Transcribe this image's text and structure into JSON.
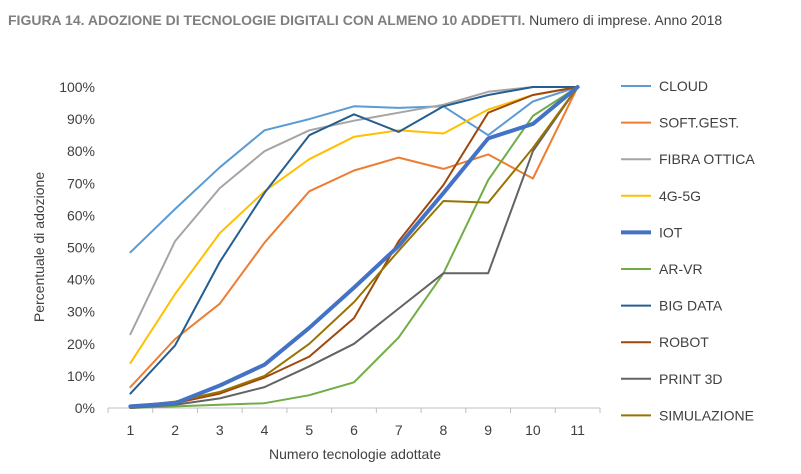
{
  "title": {
    "main": "FIGURA 14. ADOZIONE DI TECNOLOGIE DIGITALI CON ALMENO 10 ADDETTI.",
    "sub": "Numero di imprese. Anno 2018"
  },
  "chart_data": {
    "type": "line",
    "xlabel": "Numero tecnologie adottate",
    "ylabel": "Percentuale di adozione",
    "x": [
      1,
      2,
      3,
      4,
      5,
      6,
      7,
      8,
      9,
      10,
      11
    ],
    "ylim": [
      0,
      100
    ],
    "yticks": [
      "0%",
      "10%",
      "20%",
      "30%",
      "40%",
      "50%",
      "60%",
      "70%",
      "80%",
      "90%",
      "100%"
    ],
    "grid": false,
    "legend": "right",
    "series": [
      {
        "name": "CLOUD",
        "color": "#5b9bd5",
        "values": [
          48.5,
          62,
          75,
          86.5,
          90,
          94,
          93.5,
          94,
          85,
          95.5,
          100
        ]
      },
      {
        "name": "SOFT.GEST.",
        "color": "#ed7d31",
        "values": [
          6.5,
          21.5,
          32.5,
          51.5,
          67.5,
          74,
          78,
          74.5,
          79,
          71.5,
          100
        ]
      },
      {
        "name": "FIBRA OTTICA",
        "color": "#a5a5a5",
        "values": [
          23,
          52,
          68.5,
          80,
          86.5,
          89.5,
          92,
          94.5,
          98.5,
          100,
          100
        ]
      },
      {
        "name": "4G-5G",
        "color": "#ffc000",
        "values": [
          14,
          35.5,
          54.5,
          67.5,
          77.5,
          84.5,
          86.5,
          85.5,
          93,
          97.5,
          100
        ]
      },
      {
        "name": "IOT",
        "color": "#4472c4",
        "values": [
          0.5,
          1.5,
          7,
          13.5,
          25,
          37.5,
          50.5,
          67,
          84,
          88.5,
          100
        ]
      },
      {
        "name": "AR-VR",
        "color": "#70ad47",
        "values": [
          0,
          0.5,
          1,
          1.5,
          4,
          8,
          22,
          42,
          71,
          91,
          100
        ]
      },
      {
        "name": "BIG DATA",
        "color": "#255e91",
        "values": [
          4.5,
          19.5,
          45.5,
          67,
          85,
          91.5,
          86,
          94,
          97.5,
          100,
          100
        ]
      },
      {
        "name": "ROBOT",
        "color": "#9e480e",
        "values": [
          0.5,
          1.5,
          4.5,
          9.5,
          16,
          28,
          52,
          69.5,
          92,
          97.5,
          100
        ]
      },
      {
        "name": "PRINT 3D",
        "color": "#636363",
        "values": [
          0,
          1,
          3,
          6.5,
          13,
          20,
          31,
          42,
          42,
          80,
          100
        ]
      },
      {
        "name": "SIMULAZIONE",
        "color": "#997300",
        "values": [
          0.5,
          2,
          5,
          10,
          20,
          33,
          49,
          64.5,
          64,
          81,
          100
        ]
      }
    ]
  }
}
